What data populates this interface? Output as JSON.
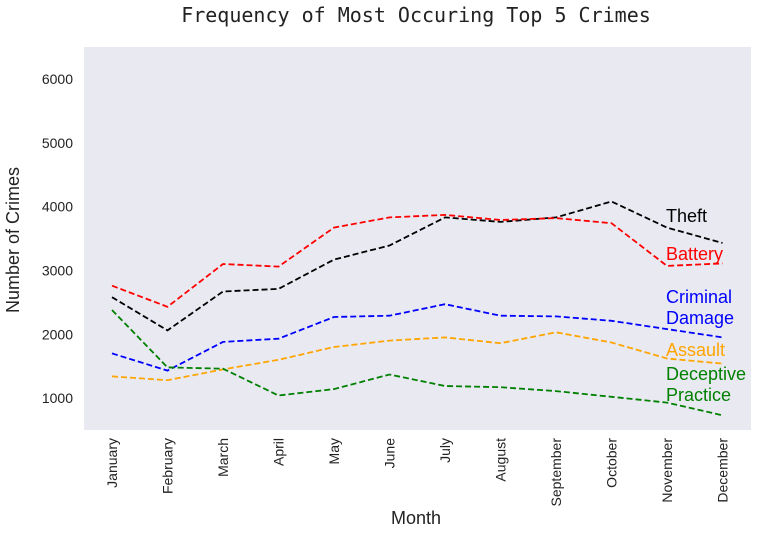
{
  "chart_data": {
    "type": "line",
    "title": "Frequency of Most Occuring Top 5 Crimes",
    "xlabel": "Month",
    "ylabel": "Number of Crimes",
    "categories": [
      "January",
      "February",
      "March",
      "April",
      "May",
      "June",
      "July",
      "August",
      "September",
      "October",
      "November",
      "December"
    ],
    "ylim": [
      500,
      6500
    ],
    "yticks": [
      1000,
      2000,
      3000,
      4000,
      5000,
      6000
    ],
    "grid": false,
    "plot_background": "#e9e9f2",
    "series": [
      {
        "name": "Theft",
        "label_lines": [
          "Theft"
        ],
        "color": "#000000",
        "values": [
          2580,
          2060,
          2670,
          2710,
          3170,
          3390,
          3830,
          3760,
          3830,
          4080,
          3670,
          3430
        ]
      },
      {
        "name": "Battery",
        "label_lines": [
          "Battery"
        ],
        "color": "#ff0000",
        "values": [
          2760,
          2430,
          3100,
          3060,
          3670,
          3830,
          3870,
          3790,
          3820,
          3740,
          3070,
          3110
        ]
      },
      {
        "name": "Criminal Damage",
        "label_lines": [
          "Criminal",
          "Damage"
        ],
        "color": "#0000ff",
        "values": [
          1700,
          1430,
          1880,
          1930,
          2270,
          2290,
          2470,
          2290,
          2280,
          2210,
          2080,
          1950
        ]
      },
      {
        "name": "Assault",
        "label_lines": [
          "Assault"
        ],
        "color": "#ffa500",
        "values": [
          1340,
          1280,
          1450,
          1600,
          1800,
          1900,
          1950,
          1860,
          2030,
          1870,
          1620,
          1540
        ]
      },
      {
        "name": "Deceptive Practice",
        "label_lines": [
          "Deceptive",
          "Practice"
        ],
        "color": "#008000",
        "values": [
          2380,
          1480,
          1460,
          1040,
          1140,
          1370,
          1190,
          1170,
          1110,
          1020,
          930,
          730
        ]
      }
    ]
  }
}
